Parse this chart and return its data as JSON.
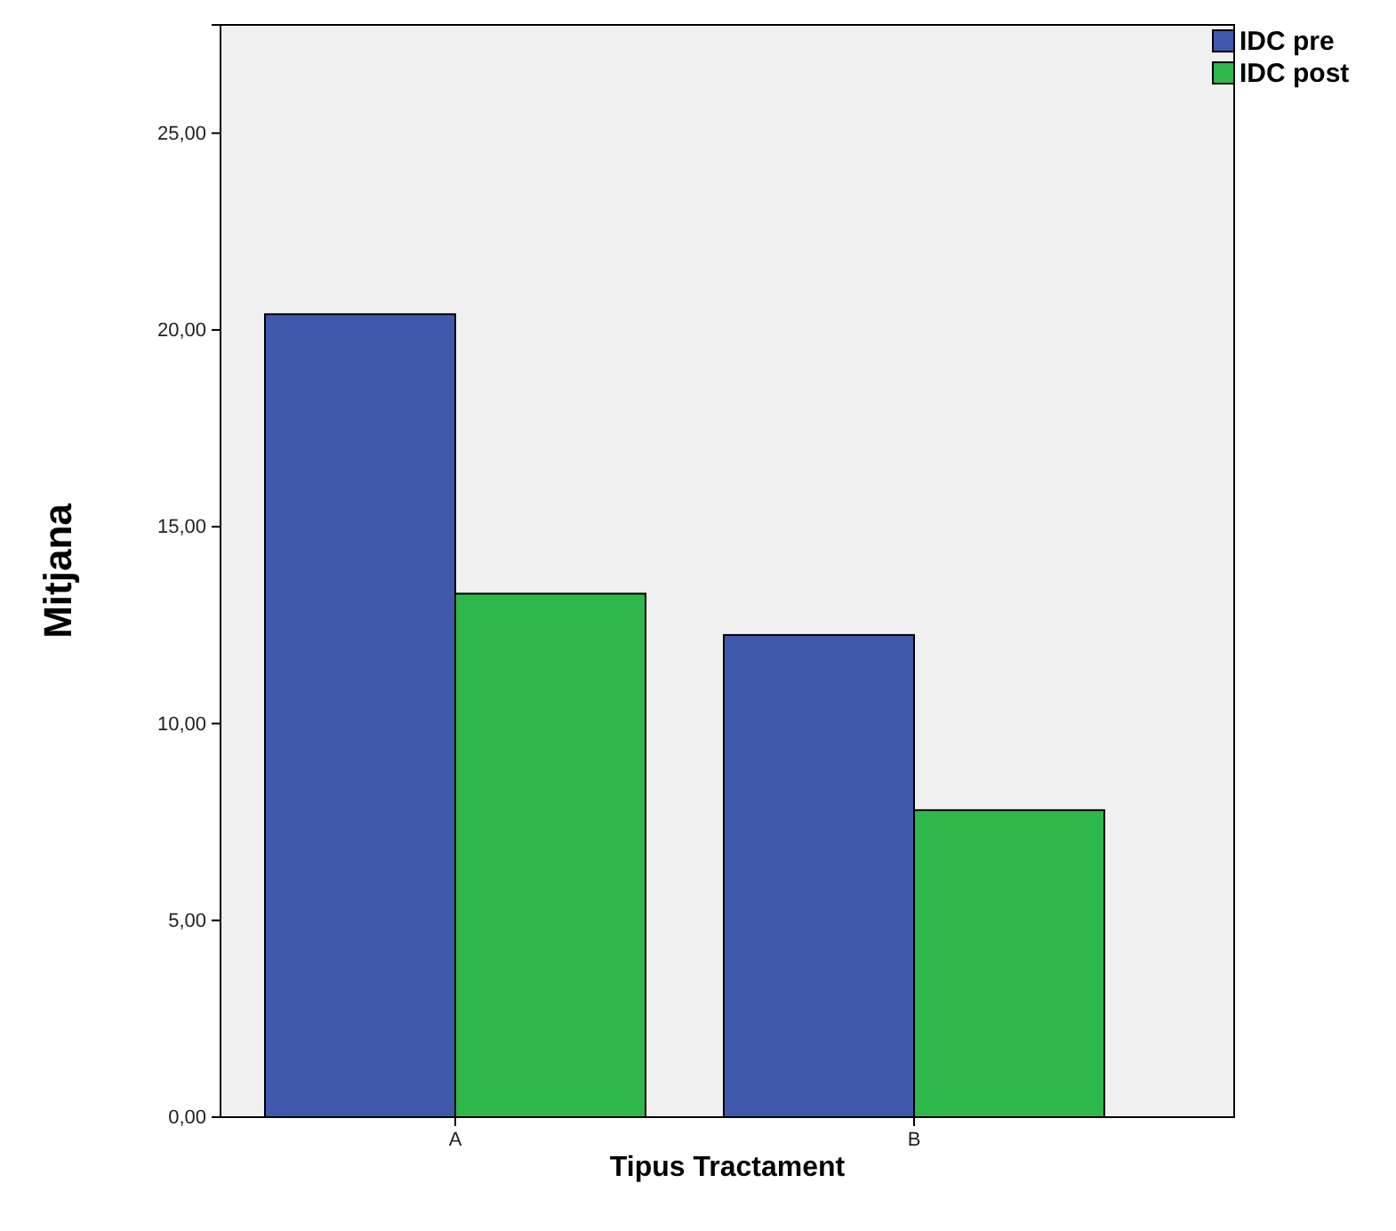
{
  "chart_data": {
    "type": "bar",
    "xlabel": "Tipus Tractament",
    "ylabel": "Mitjana",
    "categories": [
      "A",
      "B"
    ],
    "series": [
      {
        "name": "IDC pre",
        "color": "#3e58ac",
        "values": [
          20.4,
          12.25
        ]
      },
      {
        "name": "IDC post",
        "color": "#2eb84b",
        "values": [
          13.3,
          7.8
        ]
      }
    ],
    "ylim": [
      0,
      27.75
    ],
    "yticks": [
      {
        "value": 0,
        "label": "0,00"
      },
      {
        "value": 5,
        "label": "5,00"
      },
      {
        "value": 10,
        "label": "10,00"
      },
      {
        "value": 15,
        "label": "15,00"
      },
      {
        "value": 20,
        "label": "20,00"
      },
      {
        "value": 25,
        "label": "25,00"
      }
    ],
    "grid": false,
    "legend": "top right"
  }
}
